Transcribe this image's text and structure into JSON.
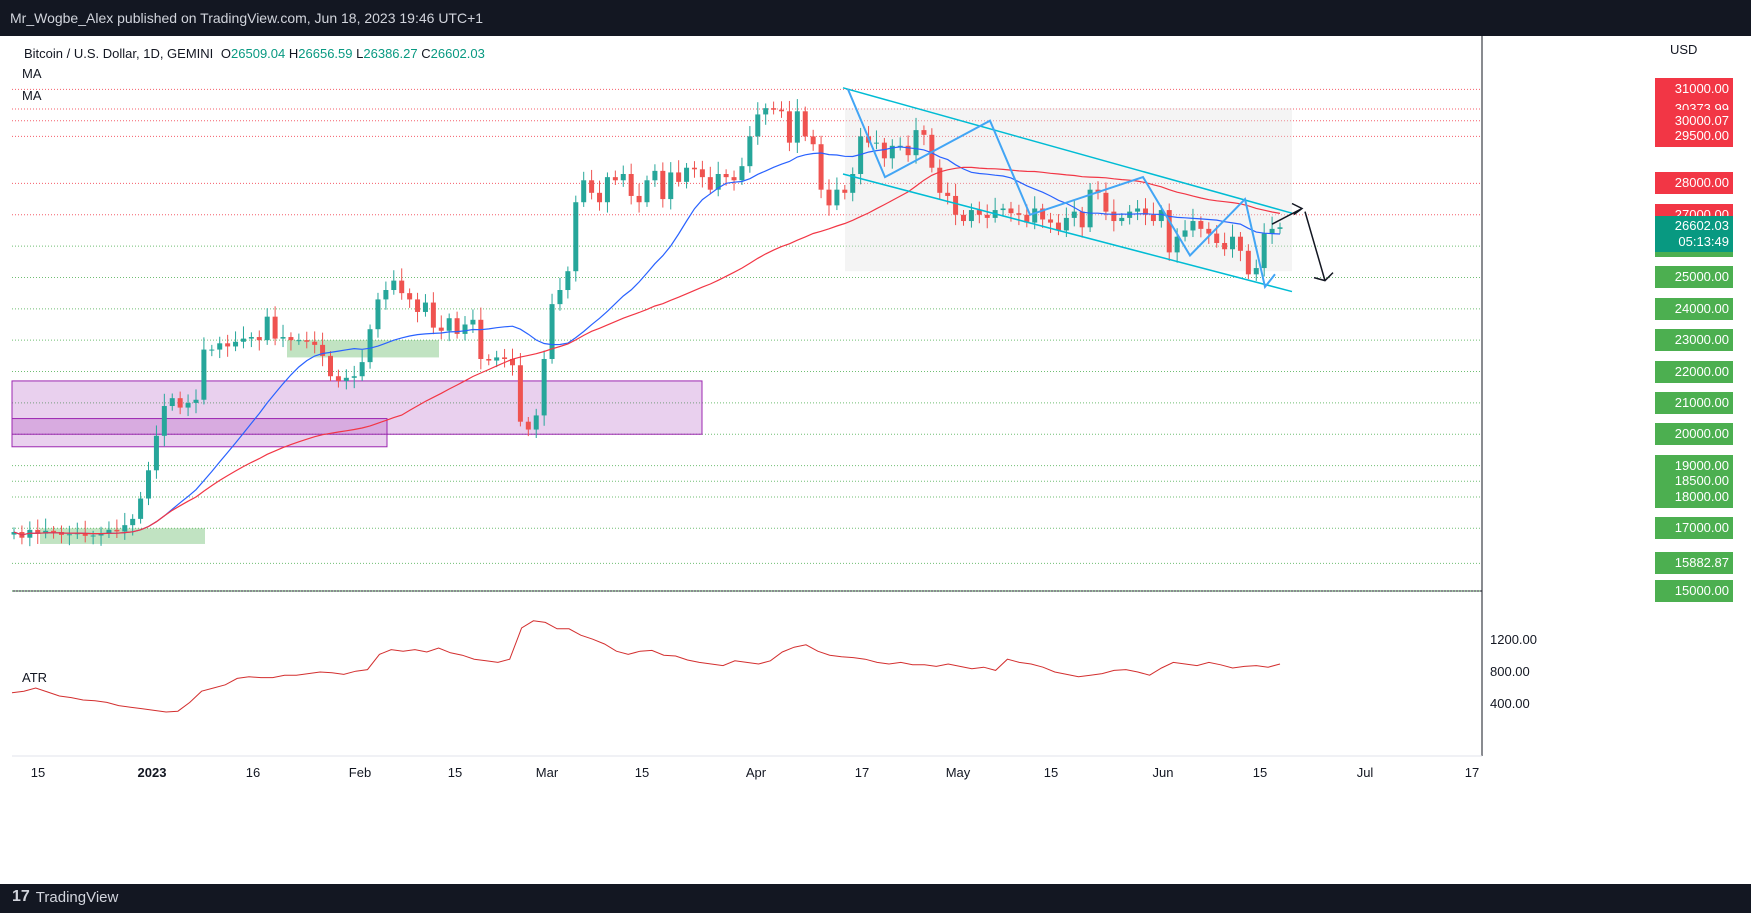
{
  "header": {
    "published_by": "Mr_Wogbe_Alex published on TradingView.com, Jun 18, 2023 19:46 UTC+1"
  },
  "legend": {
    "symbol": "Bitcoin / U.S. Dollar, 1D, GEMINI",
    "open_label": "O",
    "open": "26509.04",
    "high_label": "H",
    "high": "26656.59",
    "low_label": "L",
    "low": "26386.27",
    "close_label": "C",
    "close": "26602.03",
    "ma1": "MA",
    "ma2": "MA"
  },
  "atr_label": "ATR",
  "currency": "USD",
  "footer": {
    "brand": "TradingView"
  },
  "colors": {
    "up": "#26a69a",
    "down": "#ef5350",
    "ma_fast": "#2962ff",
    "ma_slow": "#f23645",
    "channel": "#00bcd4",
    "zigzag": "#42a5f5",
    "support": "#4caf50",
    "resistance": "#f23645",
    "zone_purple": "#9c27b0",
    "zone_green": "#4caf50",
    "atr": "#d32f2f"
  },
  "chart_data": [
    {
      "type": "candlestick",
      "symbol": "Bitcoin / U.S. Dollar",
      "timeframe": "1D",
      "exchange": "GEMINI",
      "x_labels": [
        "15",
        "2023",
        "16",
        "Feb",
        "15",
        "Mar",
        "15",
        "Apr",
        "17",
        "May",
        "15",
        "Jun",
        "15",
        "Jul",
        "17"
      ],
      "price_range": [
        15000,
        32000
      ],
      "horizontal_levels": {
        "resistance": [
          31000,
          30373.99,
          30000.07,
          29500,
          28000,
          27000
        ],
        "support": [
          26000,
          25000,
          24000,
          23000,
          22000,
          21000,
          20000,
          19000,
          18500,
          18000,
          17000,
          15882.87,
          15000
        ]
      },
      "price_labels_resistance": [
        "31000.00",
        "30373.99",
        "30000.07",
        "29500.00",
        "28000.00",
        "27000.00"
      ],
      "price_labels_support": [
        "26000.00",
        "25000.00",
        "24000.00",
        "23000.00",
        "22000.00",
        "21000.00",
        "20000.00",
        "19000.00",
        "18500.00",
        "18000.00",
        "17000.00",
        "15882.87",
        "15000.00"
      ],
      "current_price": "26602.03",
      "countdown": "05:13:49",
      "close_series": [
        16880,
        16700,
        16950,
        16830,
        16920,
        16880,
        16790,
        16810,
        16850,
        16760,
        16770,
        16840,
        16950,
        16900,
        17100,
        17300,
        17950,
        18850,
        19950,
        20900,
        21150,
        20850,
        21000,
        21100,
        22700,
        22700,
        22900,
        22800,
        22950,
        23050,
        23100,
        23000,
        23750,
        23050,
        23100,
        23000,
        23000,
        22950,
        22850,
        22500,
        21850,
        21700,
        21800,
        21850,
        22300,
        23350,
        24300,
        24600,
        24900,
        24500,
        24300,
        23900,
        24200,
        23400,
        23300,
        23700,
        23200,
        23500,
        23650,
        22400,
        22350,
        22450,
        22400,
        22200,
        20400,
        20150,
        20600,
        22400,
        24150,
        24600,
        25200,
        27400,
        28100,
        27700,
        27400,
        28200,
        28100,
        28300,
        27600,
        27400,
        28100,
        28400,
        27500,
        28350,
        28050,
        28500,
        28450,
        28200,
        27800,
        28300,
        28200,
        28100,
        28550,
        29500,
        30200,
        30400,
        30350,
        30300,
        29300,
        30300,
        29500,
        29250,
        27800,
        27300,
        27800,
        27700,
        28300,
        29500,
        29300,
        29300,
        28800,
        29200,
        29200,
        28900,
        29700,
        29550,
        28500,
        27700,
        27600,
        27000,
        26800,
        27150,
        27000,
        26900,
        27150,
        27200,
        27050,
        27000,
        26750,
        27200,
        26850,
        26750,
        26500,
        26900,
        27100,
        26600,
        27800,
        27700,
        27100,
        26800,
        26900,
        27100,
        27200,
        27000,
        26800,
        27150,
        25800,
        26300,
        26500,
        26800,
        26550,
        26400,
        26100,
        25900,
        26300,
        25850,
        25100,
        25300,
        26400,
        26550,
        26600
      ],
      "moving_averages": [
        {
          "name": "MA",
          "color": "ma_fast"
        },
        {
          "name": "MA",
          "color": "ma_slow"
        }
      ]
    },
    {
      "type": "line",
      "title": "ATR",
      "y_ticks": [
        "1200.00",
        "800.00",
        "400.00"
      ],
      "ylim": [
        0,
        1600
      ],
      "values": [
        540,
        560,
        600,
        550,
        500,
        480,
        450,
        440,
        420,
        380,
        360,
        340,
        320,
        300,
        310,
        420,
        560,
        600,
        640,
        720,
        740,
        730,
        730,
        760,
        760,
        780,
        800,
        790,
        770,
        810,
        830,
        1020,
        1080,
        1060,
        1080,
        1050,
        1100,
        1040,
        1010,
        960,
        940,
        920,
        960,
        1350,
        1440,
        1420,
        1340,
        1340,
        1260,
        1210,
        1150,
        1060,
        1020,
        1060,
        1070,
        1010,
        1000,
        950,
        920,
        900,
        880,
        940,
        920,
        900,
        940,
        1050,
        1110,
        1140,
        1060,
        1010,
        990,
        980,
        960,
        920,
        900,
        920,
        890,
        890,
        870,
        900,
        870,
        840,
        860,
        820,
        960,
        920,
        900,
        860,
        800,
        770,
        740,
        760,
        780,
        820,
        830,
        800,
        760,
        850,
        920,
        900,
        880,
        920,
        890,
        850,
        870,
        880,
        860,
        900
      ]
    }
  ]
}
